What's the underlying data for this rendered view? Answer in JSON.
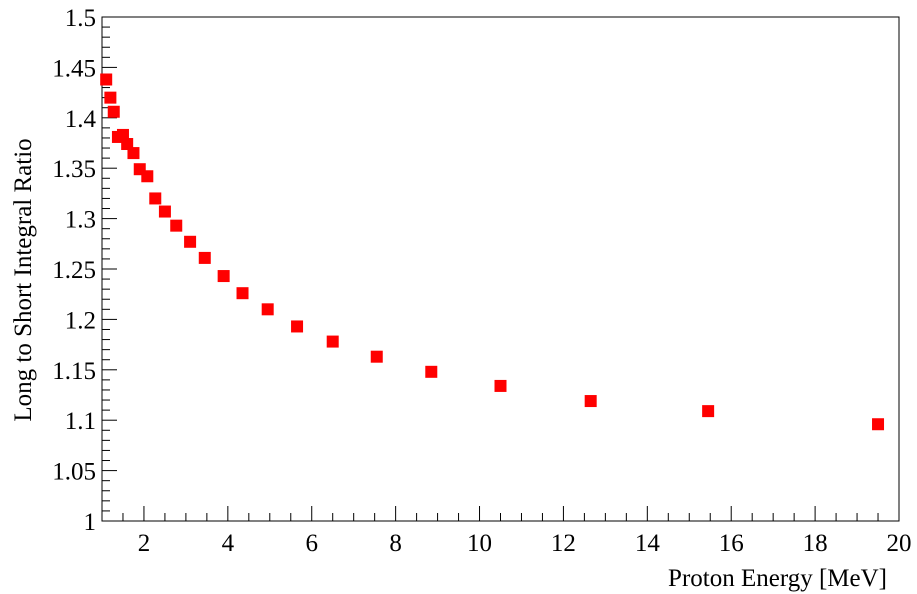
{
  "chart_data": {
    "type": "scatter",
    "title": "",
    "xlabel": "Proton Energy [MeV]",
    "ylabel": "Long to Short Integral Ratio",
    "xlim": [
      1,
      20
    ],
    "ylim": [
      1,
      1.5
    ],
    "x_ticks": [
      2,
      4,
      6,
      8,
      10,
      12,
      14,
      16,
      18,
      20
    ],
    "x_tick_labels": [
      "2",
      "4",
      "6",
      "8",
      "10",
      "12",
      "14",
      "16",
      "18",
      "20"
    ],
    "y_ticks": [
      1,
      1.05,
      1.1,
      1.15,
      1.2,
      1.25,
      1.3,
      1.35,
      1.4,
      1.45,
      1.5
    ],
    "y_tick_labels": [
      "1",
      "1.05",
      "1.1",
      "1.15",
      "1.2",
      "1.25",
      "1.3",
      "1.35",
      "1.4",
      "1.45",
      "1.5"
    ],
    "grid": false,
    "legend": "none",
    "marker": "square",
    "marker_color": "#ff0000",
    "series": [
      {
        "points": [
          {
            "x": 1.1,
            "y": 1.438
          },
          {
            "x": 1.2,
            "y": 1.42
          },
          {
            "x": 1.28,
            "y": 1.406
          },
          {
            "x": 1.38,
            "y": 1.381
          },
          {
            "x": 1.5,
            "y": 1.383
          },
          {
            "x": 1.6,
            "y": 1.374
          },
          {
            "x": 1.75,
            "y": 1.365
          },
          {
            "x": 1.9,
            "y": 1.349
          },
          {
            "x": 2.08,
            "y": 1.342
          },
          {
            "x": 2.27,
            "y": 1.32
          },
          {
            "x": 2.5,
            "y": 1.307
          },
          {
            "x": 2.77,
            "y": 1.293
          },
          {
            "x": 3.1,
            "y": 1.277
          },
          {
            "x": 3.45,
            "y": 1.261
          },
          {
            "x": 3.9,
            "y": 1.243
          },
          {
            "x": 4.35,
            "y": 1.226
          },
          {
            "x": 4.95,
            "y": 1.21
          },
          {
            "x": 5.65,
            "y": 1.193
          },
          {
            "x": 6.5,
            "y": 1.178
          },
          {
            "x": 7.55,
            "y": 1.163
          },
          {
            "x": 8.85,
            "y": 1.148
          },
          {
            "x": 10.5,
            "y": 1.134
          },
          {
            "x": 12.65,
            "y": 1.119
          },
          {
            "x": 15.45,
            "y": 1.109
          },
          {
            "x": 19.5,
            "y": 1.096
          }
        ]
      }
    ]
  }
}
